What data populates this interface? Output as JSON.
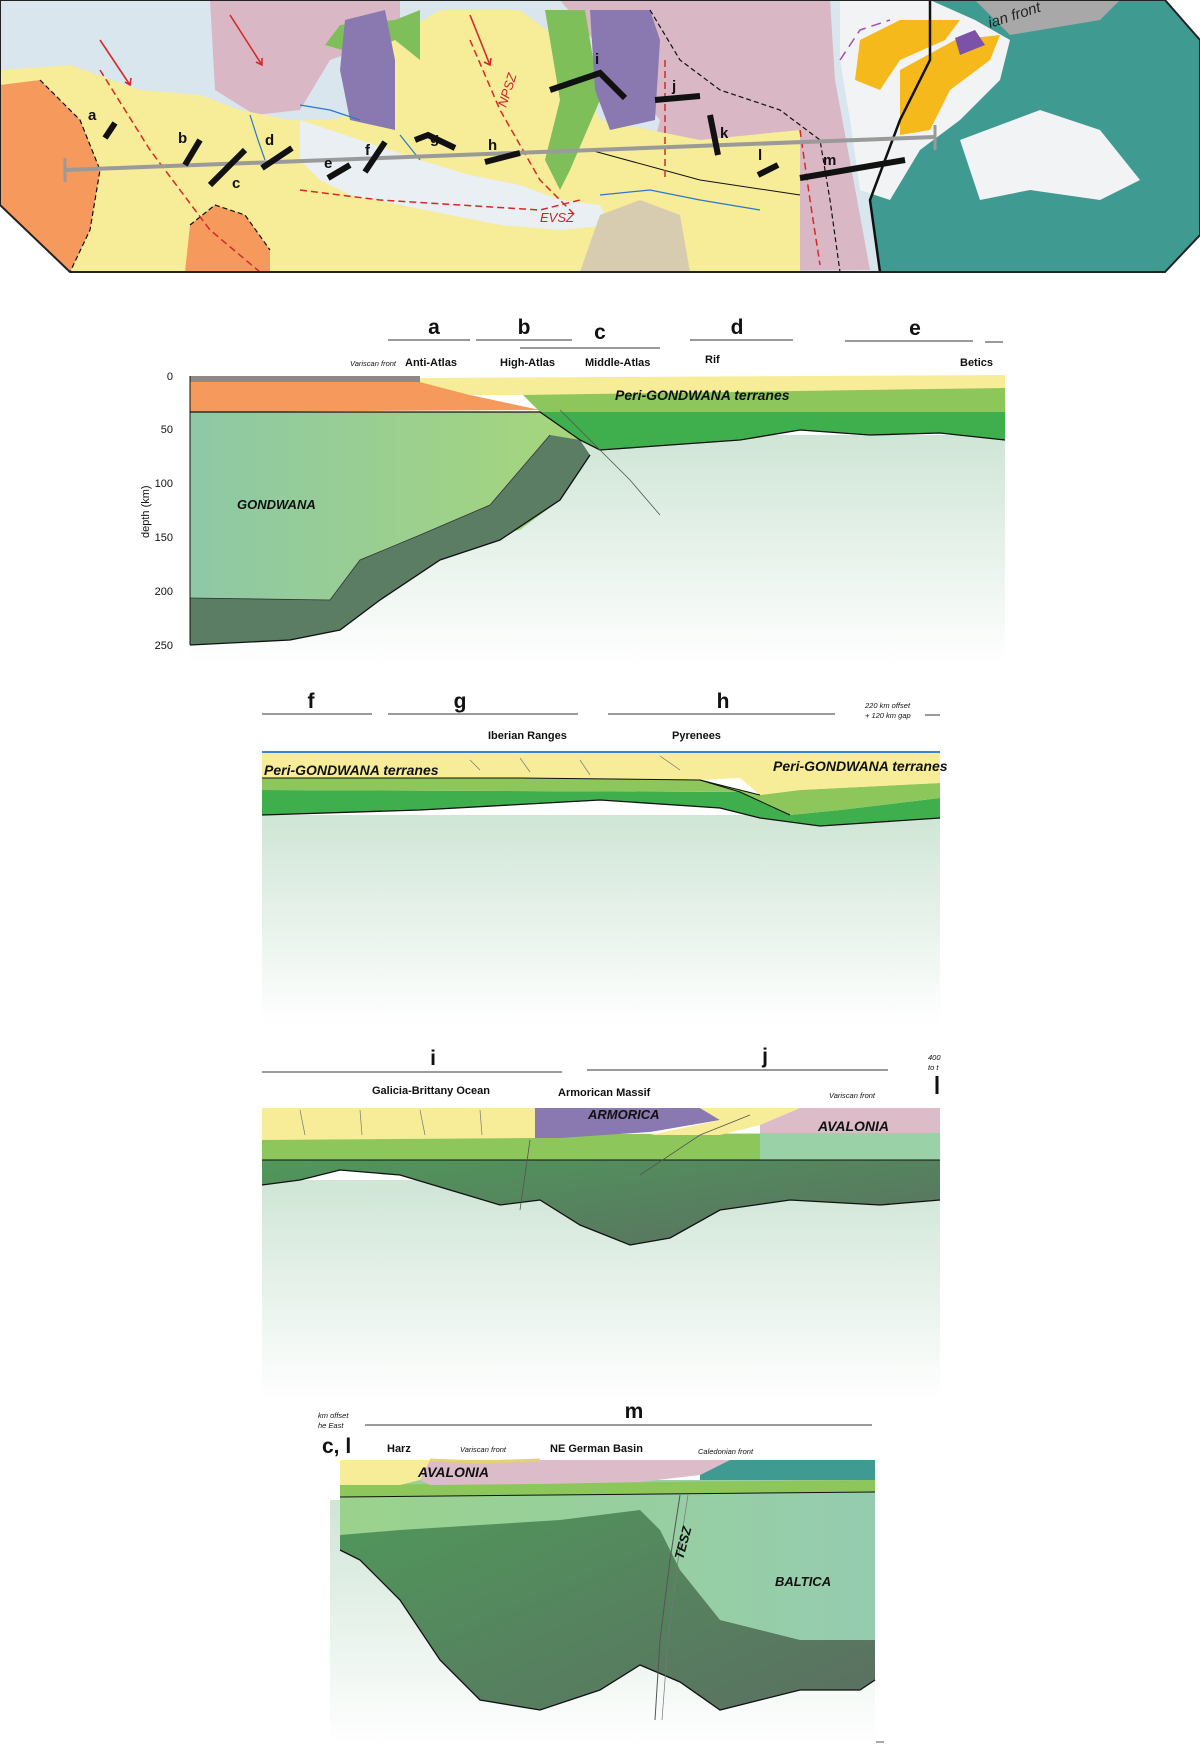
{
  "map": {
    "profile_segment_letters": [
      "a",
      "b",
      "c",
      "d",
      "e",
      "f",
      "g",
      "h",
      "i",
      "j",
      "k",
      "l",
      "m"
    ],
    "fault_labels": {
      "npsz": "NPSZ",
      "evsz": "EVSZ"
    },
    "front_label": "ian front"
  },
  "section1": {
    "segments": [
      "a",
      "b",
      "c",
      "d",
      "e"
    ],
    "regions": {
      "variscan_front": "Variscan front",
      "anti_atlas": "Anti-Atlas",
      "high_atlas": "High-Atlas",
      "middle_atlas": "Middle-Atlas",
      "rif": "Rif",
      "betics": "Betics"
    },
    "terranes": {
      "peri": "Peri-GONDWANA terranes",
      "gondwana": "GONDWANA"
    },
    "axis": {
      "label": "depth (km)",
      "ticks": [
        "0",
        "50",
        "100",
        "150",
        "200",
        "250"
      ]
    }
  },
  "section2": {
    "segments": [
      "f",
      "g",
      "h"
    ],
    "regions": {
      "iberian": "Iberian Ranges",
      "pyrenees": "Pyrenees"
    },
    "offset_note": [
      "220 km offset",
      "+ 120 km gap"
    ],
    "terranes": {
      "peri_left": "Peri-GONDWANA terranes",
      "peri_right": "Peri-GONDWANA terranes"
    }
  },
  "section3": {
    "segments": [
      "i",
      "j"
    ],
    "regions": {
      "galicia": "Galicia-Brittany Ocean",
      "armorican": "Armorican Massif",
      "variscan_front": "Variscan front"
    },
    "offset_note": [
      "400",
      "to t"
    ],
    "terranes": {
      "armorica": "ARMORICA",
      "avalonia": "AVALONIA"
    }
  },
  "section4": {
    "segments": [
      "m"
    ],
    "corner_label": "c, l",
    "offset_note": [
      "km offset",
      "he East"
    ],
    "regions": {
      "harz": "Harz",
      "variscan_front": "Variscan front",
      "ne_german": "NE German Basin",
      "caledonian_front": "Caledonian front"
    },
    "terranes": {
      "avalonia": "AVALONIA",
      "tesz": "TESZ",
      "baltica": "BALTICA"
    }
  },
  "colors": {
    "peri_yellow": "#f7ec98",
    "gondwana_orange": "#f59a5c",
    "light_green": "#8dc65a",
    "mid_green": "#3fae4c",
    "mantle_green": "#9ccf9a",
    "deep_green": "#5a7d64",
    "armorica_purple": "#8a78b0",
    "avalonia_pink": "#dcbcc8",
    "baltica_teal": "#3f9a92",
    "fault_red": "#d42a2a",
    "river_blue": "#2b78c8",
    "profile_gray": "#9a9a9a"
  }
}
